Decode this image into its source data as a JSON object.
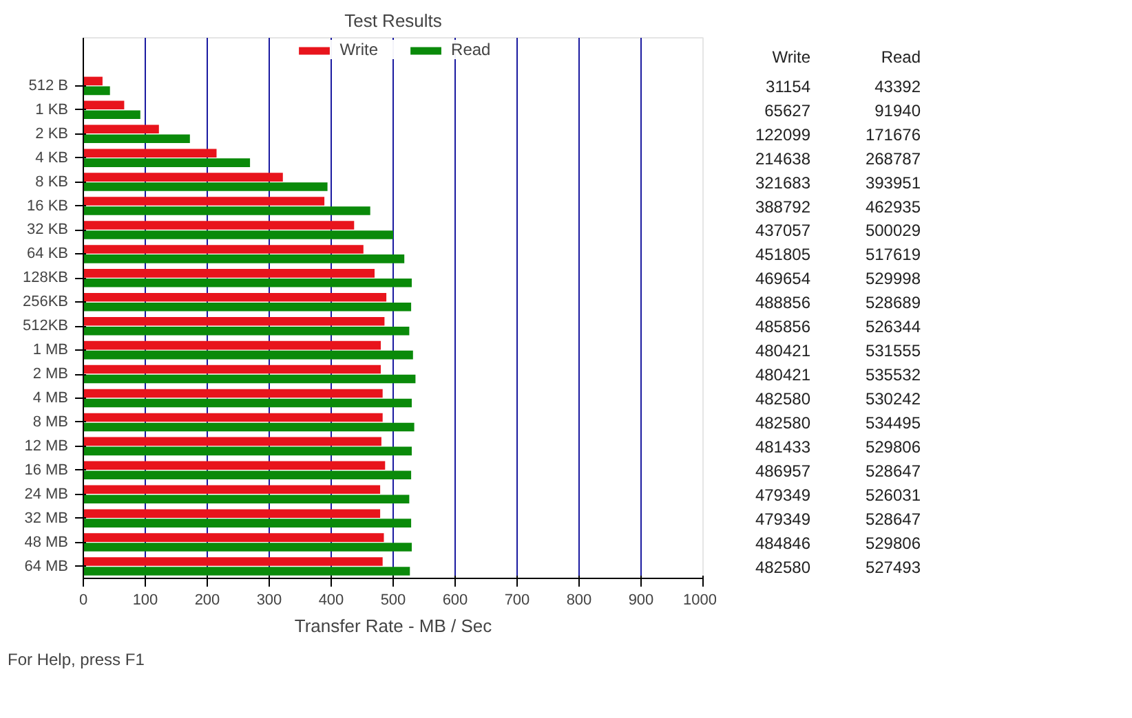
{
  "chart_data": {
    "type": "bar",
    "orientation": "horizontal",
    "title": "Test Results",
    "xlabel": "Transfer Rate - MB / Sec",
    "categories": [
      "512 B",
      "1 KB",
      "2 KB",
      "4 KB",
      "8 KB",
      "16 KB",
      "32 KB",
      "64 KB",
      "128KB",
      "256KB",
      "512KB",
      "1 MB",
      "2 MB",
      "4 MB",
      "8 MB",
      "12 MB",
      "16 MB",
      "24 MB",
      "32 MB",
      "48 MB",
      "64 MB"
    ],
    "series": [
      {
        "name": "Write",
        "color": "#e8141c",
        "values": [
          31,
          66,
          122,
          215,
          322,
          389,
          437,
          452,
          470,
          489,
          486,
          480,
          480,
          483,
          483,
          481,
          487,
          479,
          479,
          485,
          483
        ]
      },
      {
        "name": "Read",
        "color": "#0a8a0a",
        "values": [
          43,
          92,
          172,
          269,
          394,
          463,
          500,
          518,
          530,
          529,
          526,
          532,
          536,
          530,
          534,
          530,
          529,
          526,
          529,
          530,
          527
        ]
      }
    ],
    "xlim": [
      0,
      1000
    ],
    "xticks": [
      0,
      100,
      200,
      300,
      400,
      500,
      600,
      700,
      800,
      900,
      1000
    ],
    "grid": "x",
    "legend": "top",
    "annotations": [
      "31154",
      "43392",
      "65627",
      "91940",
      "122099",
      "171676",
      "214638",
      "268787",
      "321683",
      "393951",
      "388792",
      "462935",
      "437057",
      "500029",
      "451805",
      "517619",
      "469654",
      "529998",
      "488856",
      "528689",
      "485856",
      "526344",
      "480421",
      "531555",
      "480421",
      "535532",
      "482580",
      "530242",
      "482580",
      "534495",
      "481433",
      "529806",
      "486957",
      "528647",
      "479349",
      "526031",
      "479349",
      "528647",
      "484846",
      "529806",
      "482580",
      "527493",
      "For Help, press F1"
    ]
  }
}
